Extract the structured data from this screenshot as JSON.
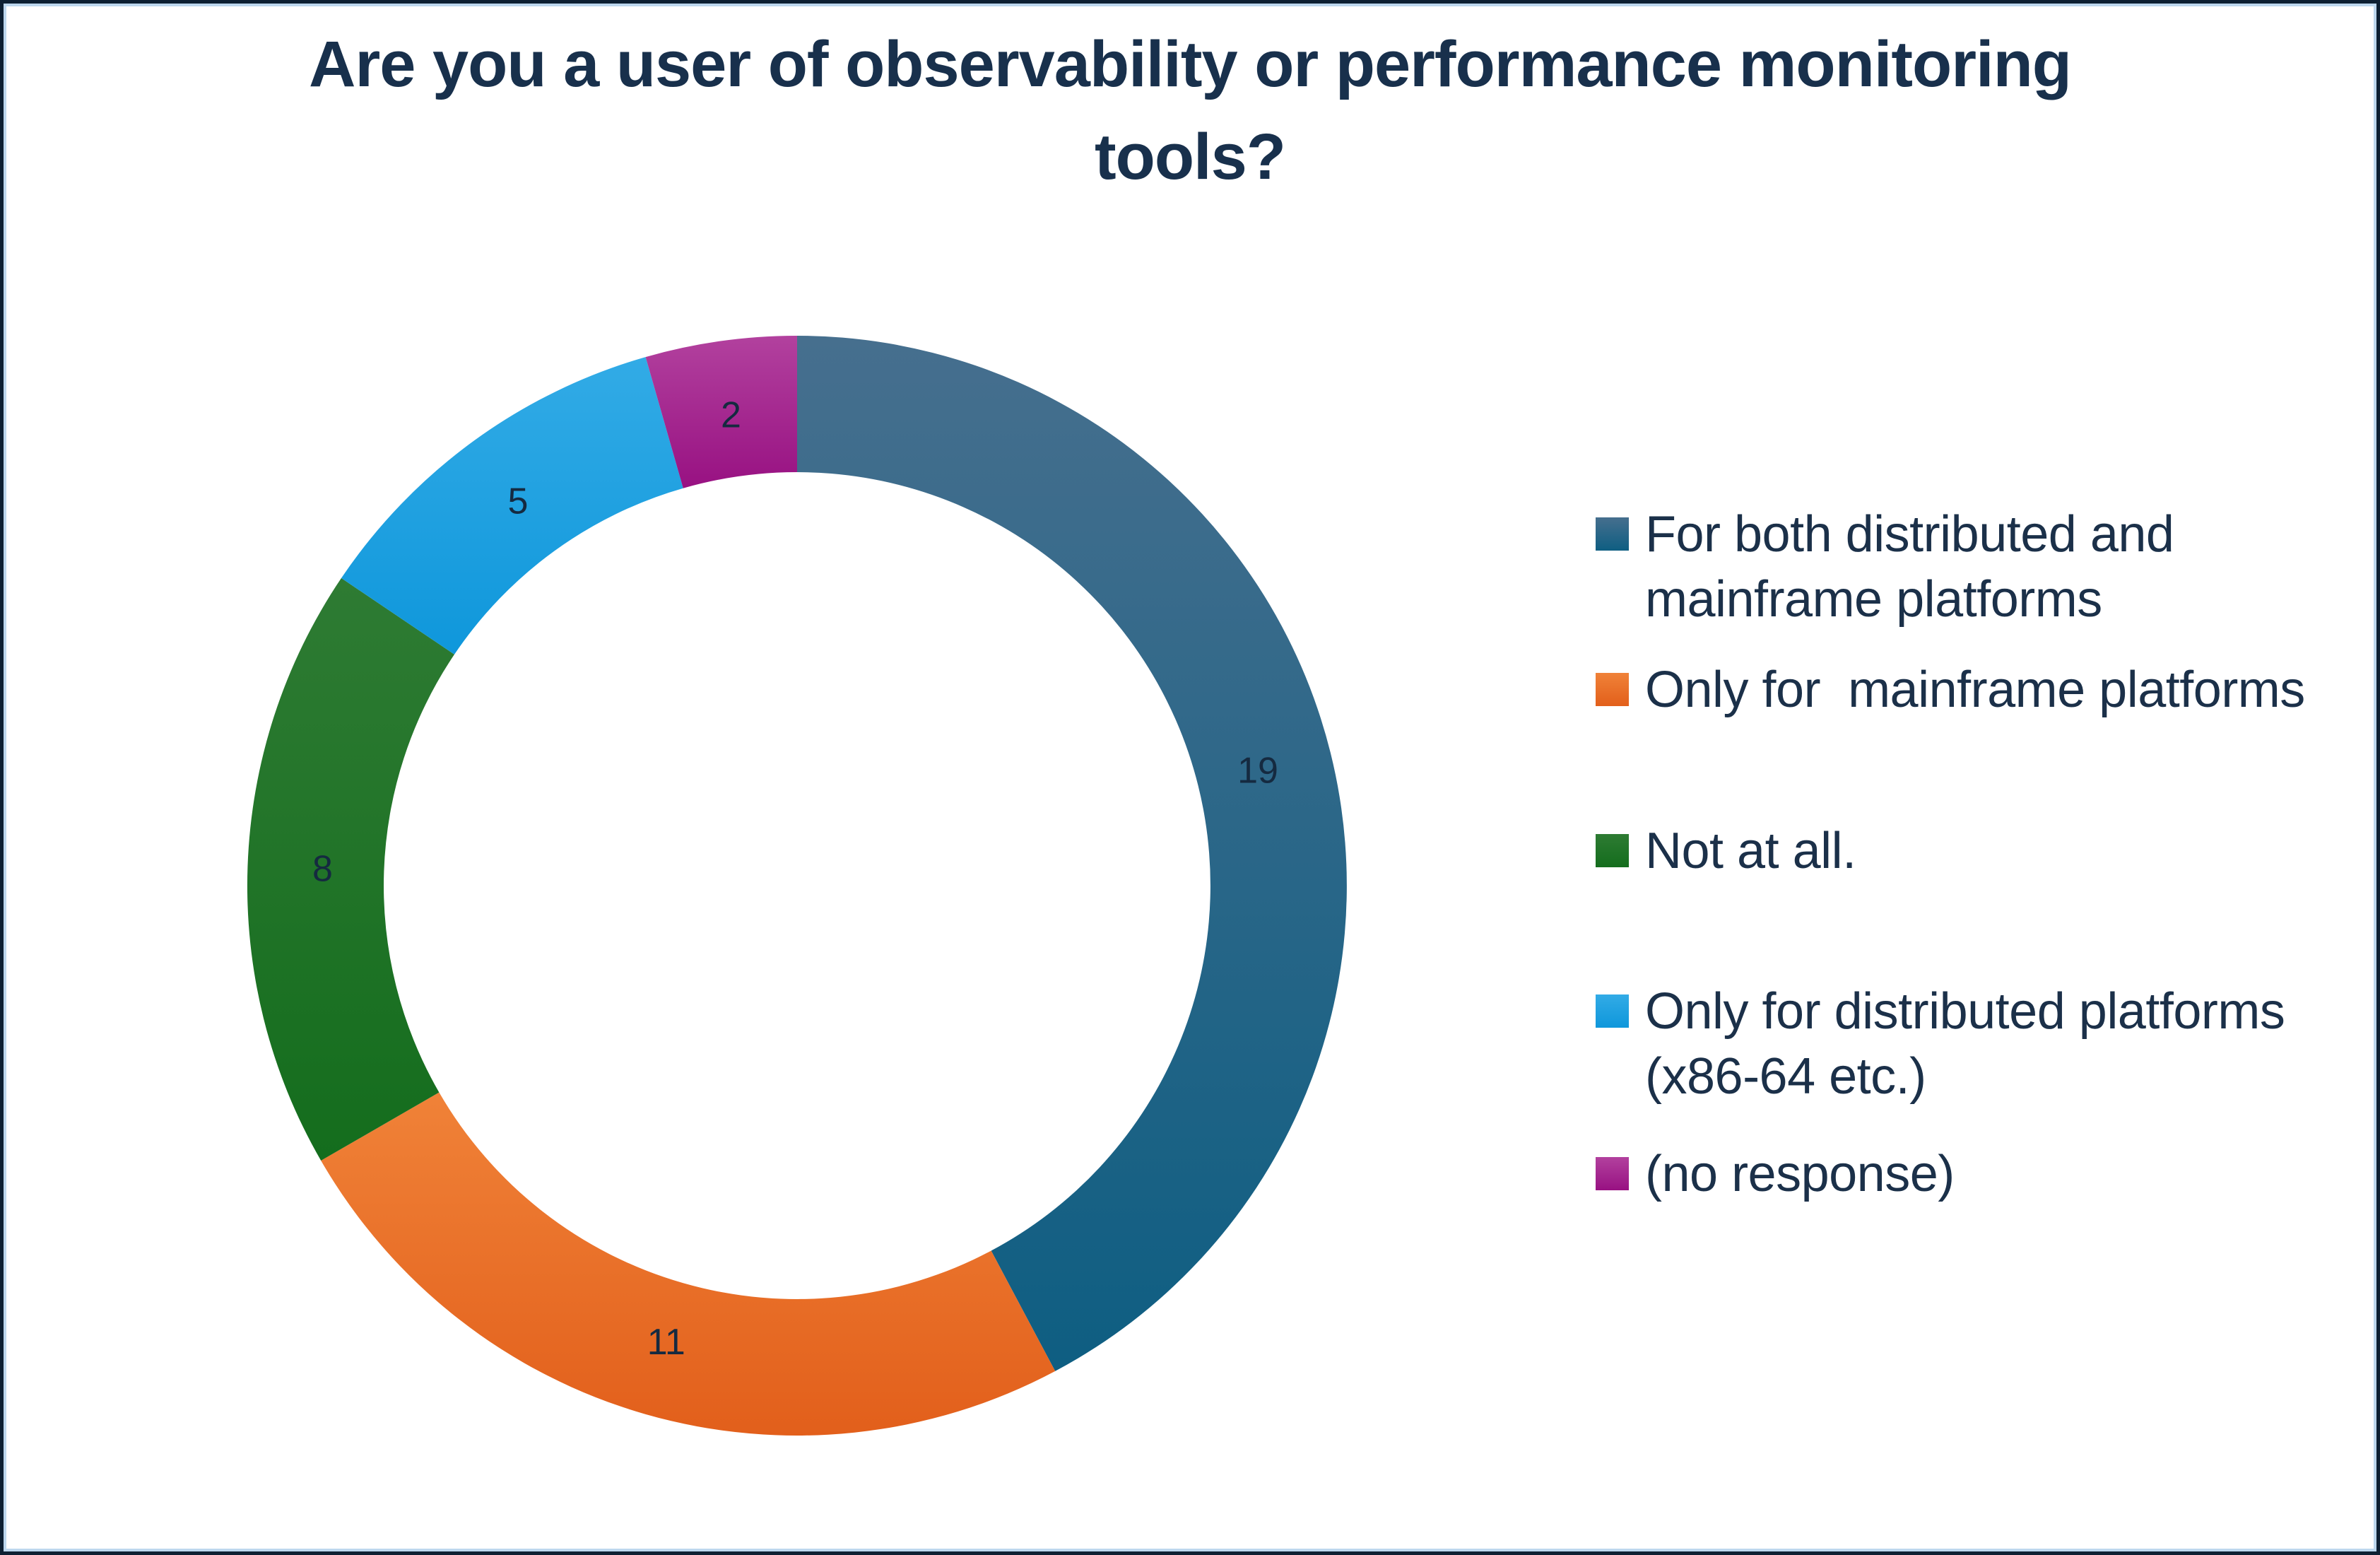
{
  "frame": {
    "outer_border_color": "#0E2033",
    "inner_border_color": "#BDD7EE"
  },
  "title": {
    "text": "Are you a user of observability or performance monitoring tools?",
    "line1": "Are you a user of observability or performance monitoring",
    "line2": "tools?",
    "color": "#18304C"
  },
  "chart_data": {
    "type": "pie",
    "style": "donut",
    "title": "Are you a user of observability or performance monitoring tools?",
    "direction": "clockwise",
    "start_angle_deg": 0,
    "legend_position": "right",
    "total": 45,
    "value_label_color": "#152A40",
    "segments": [
      {
        "label": "For both distributed and mainframe platforms",
        "value": 19,
        "color_top": "#466F8E",
        "color_bottom": "#0E5E82"
      },
      {
        "label": "Only for  mainframe platforms",
        "value": 11,
        "color_top": "#F08238",
        "color_bottom": "#E25F1B"
      },
      {
        "label": "Not at all.",
        "value": 8,
        "color_top": "#2E7B33",
        "color_bottom": "#146D1D"
      },
      {
        "label": "Only for distributed platforms (x86-64 etc.)",
        "value": 5,
        "color_top": "#32ABE6",
        "color_bottom": "#0F97DB"
      },
      {
        "label": "(no response)",
        "value": 2,
        "color_top": "#B2419E",
        "color_bottom": "#981182"
      }
    ]
  },
  "legend": {
    "items": [
      {
        "line1": "For both distributed and",
        "line2": "mainframe platforms"
      },
      {
        "line1": "Only for  mainframe platforms",
        "line2": ""
      },
      {
        "line1": "Not at all.",
        "line2": ""
      },
      {
        "line1": "Only for distributed platforms",
        "line2": "(x86-64 etc.)"
      },
      {
        "line1": "(no response)",
        "line2": ""
      }
    ]
  }
}
